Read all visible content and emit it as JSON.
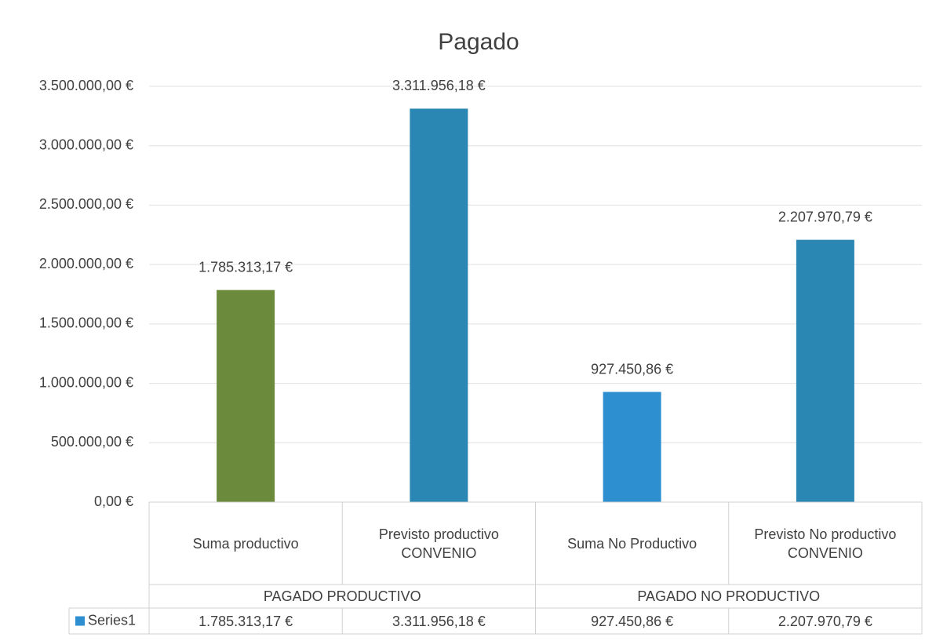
{
  "chart_data": {
    "type": "bar",
    "title": "Pagado",
    "categories": [
      "Suma productivo",
      "Previsto productivo CONVENIO",
      "Suma No Productivo",
      "Previsto No productivo CONVENIO"
    ],
    "groups": [
      {
        "label": "PAGADO PRODUCTIVO",
        "span": 2
      },
      {
        "label": "PAGADO NO PRODUCTIVO",
        "span": 2
      }
    ],
    "series": [
      {
        "name": "Series1",
        "color": "#2e8fd0",
        "values": [
          1785313.17,
          3311956.18,
          927450.86,
          2207970.79
        ],
        "value_labels": [
          "1.785.313,17 €",
          "3.311.956,18 €",
          "927.450,86 €",
          "2.207.970,79 €"
        ],
        "colors": [
          "#6b8a3c",
          "#2a86b3",
          "#2e8fd0",
          "#2a86b3"
        ]
      }
    ],
    "ylim": [
      0,
      3500000
    ],
    "yticks": [
      {
        "value": 0,
        "label": "0,00 €"
      },
      {
        "value": 500000,
        "label": "500.000,00 €"
      },
      {
        "value": 1000000,
        "label": "1.000.000,00 €"
      },
      {
        "value": 1500000,
        "label": "1.500.000,00 €"
      },
      {
        "value": 2000000,
        "label": "2.000.000,00 €"
      },
      {
        "value": 2500000,
        "label": "2.500.000,00 €"
      },
      {
        "value": 3000000,
        "label": "3.000.000,00 €"
      },
      {
        "value": 3500000,
        "label": "3.500.000,00 €"
      }
    ],
    "grid": true,
    "data_table": true
  }
}
